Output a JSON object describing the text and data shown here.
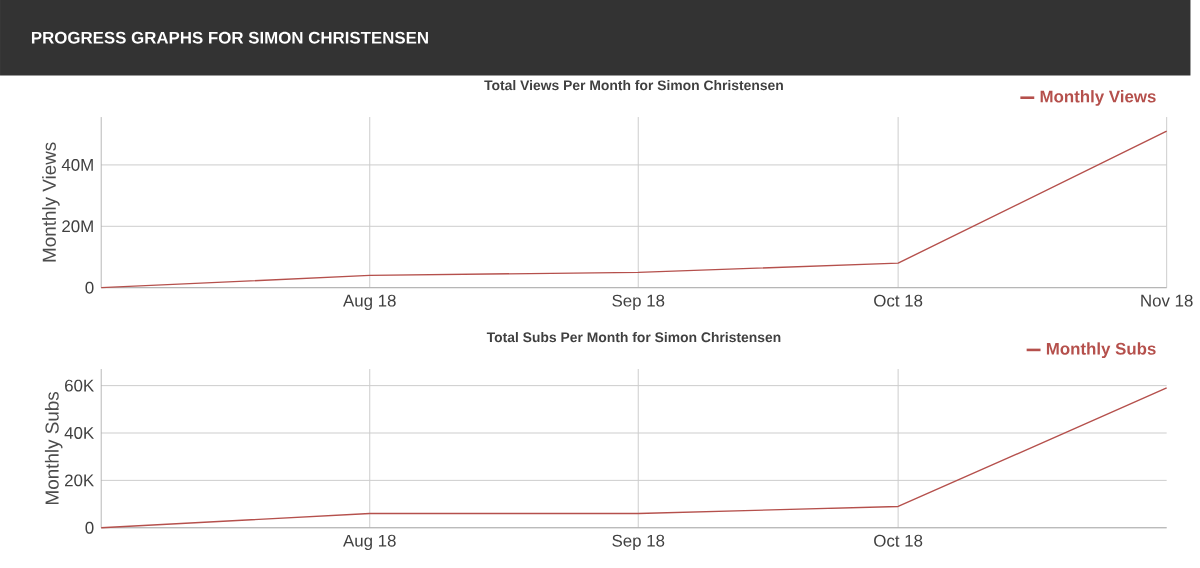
{
  "chart_data": [
    {
      "type": "line",
      "title": "Total Views Per Month for Simon Christensen",
      "ylabel": "Monthly Views",
      "annotations": [
        "PROGRESS GRAPHS FOR SIMON CHRISTENSEN"
      ],
      "series": [
        {
          "name": "Monthly Views",
          "color": "#b5504c",
          "x": [
            "2018-07-01",
            "2018-08-01",
            "2018-09-01",
            "2018-10-01",
            "2018-11-01"
          ],
          "values": [
            0,
            4,
            5,
            8,
            51
          ]
        }
      ],
      "xlim": [
        "2018-07-01",
        "2018-11-01"
      ],
      "xticks": [
        {
          "value": "2018-08-01",
          "label": "Aug 18"
        },
        {
          "value": "2018-09-01",
          "label": "Sep 18"
        },
        {
          "value": "2018-10-01",
          "label": "Oct 18"
        },
        {
          "value": "2018-11-01",
          "label": "Nov 18"
        }
      ],
      "ylim": [
        0,
        55.6
      ],
      "yticks": [
        0,
        {
          "value": 20,
          "label": "20M"
        },
        {
          "value": 40,
          "label": "40M"
        }
      ],
      "grid": true,
      "legend": "top right"
    },
    {
      "type": "line",
      "title": "Total Subs Per Month for Simon Christensen",
      "ylabel": "Monthly Subs",
      "series": [
        {
          "name": "Monthly Subs",
          "color": "#b5504c",
          "x": [
            "2018-07-01",
            "2018-08-01",
            "2018-09-01",
            "2018-10-01",
            "2018-11-01"
          ],
          "values": [
            0,
            6,
            6,
            9,
            59
          ]
        }
      ],
      "xlim": [
        "2018-07-01",
        "2018-11-01"
      ],
      "xticks": [
        {
          "value": "2018-08-01",
          "label": "Aug 18"
        },
        {
          "value": "2018-09-01",
          "label": "Sep 18"
        },
        {
          "value": "2018-10-01",
          "label": "Oct 18"
        }
      ],
      "ylim": [
        0,
        67
      ],
      "yticks": [
        0,
        {
          "value": 20,
          "label": "20K"
        },
        {
          "value": 40,
          "label": "40K"
        },
        {
          "value": 60,
          "label": "60K"
        }
      ],
      "grid": true,
      "legend": "top right"
    }
  ]
}
